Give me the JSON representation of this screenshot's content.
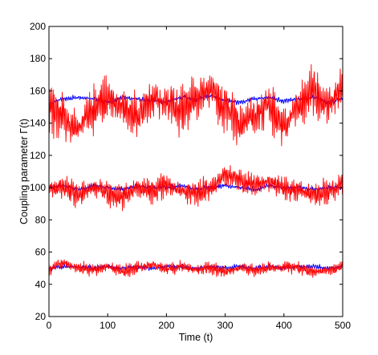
{
  "chart_data": {
    "type": "line",
    "title": "",
    "xlabel": "Time (t)",
    "ylabel": "Coupling parameter Γ(t)",
    "xlim": [
      0,
      500
    ],
    "ylim": [
      20,
      200
    ],
    "xticks": [
      0,
      100,
      200,
      300,
      400,
      500
    ],
    "yticks": [
      20,
      40,
      60,
      80,
      100,
      120,
      140,
      160,
      180,
      200
    ],
    "grid": false,
    "legend": "none",
    "series": [
      {
        "color": "#0000ff",
        "x": [
          0,
          25,
          50,
          75,
          100,
          125,
          150,
          175,
          200,
          225,
          250,
          275,
          300,
          325,
          350,
          375,
          400,
          425,
          450,
          475,
          500
        ],
        "y": [
          152,
          155,
          156,
          155,
          153,
          156,
          155,
          154,
          153,
          156,
          155,
          157,
          154,
          153,
          155,
          156,
          154,
          155,
          156,
          153,
          155
        ]
      },
      {
        "color": "#ff0000",
        "x": [
          0,
          25,
          50,
          75,
          100,
          125,
          150,
          175,
          200,
          225,
          250,
          275,
          300,
          325,
          350,
          375,
          400,
          425,
          450,
          475,
          500
        ],
        "y": [
          150,
          142,
          138,
          148,
          154,
          150,
          146,
          156,
          152,
          148,
          156,
          160,
          150,
          140,
          146,
          150,
          138,
          152,
          160,
          152,
          162
        ]
      },
      {
        "color": "#0000ff",
        "x": [
          0,
          25,
          50,
          75,
          100,
          125,
          150,
          175,
          200,
          225,
          250,
          275,
          300,
          325,
          350,
          375,
          400,
          425,
          450,
          475,
          500
        ],
        "y": [
          100,
          101,
          99,
          101,
          100,
          99,
          101,
          100,
          100,
          101,
          99,
          100,
          101,
          100,
          99,
          101,
          100,
          100,
          99,
          100,
          100
        ]
      },
      {
        "color": "#ff0000",
        "x": [
          0,
          25,
          50,
          75,
          100,
          125,
          150,
          175,
          200,
          225,
          250,
          275,
          300,
          325,
          350,
          375,
          400,
          425,
          450,
          475,
          500
        ],
        "y": [
          99,
          100,
          96,
          100,
          96,
          94,
          100,
          98,
          102,
          98,
          96,
          100,
          108,
          104,
          102,
          104,
          100,
          98,
          96,
          98,
          102
        ]
      },
      {
        "color": "#0000ff",
        "x": [
          0,
          25,
          50,
          75,
          100,
          125,
          150,
          175,
          200,
          225,
          250,
          275,
          300,
          325,
          350,
          375,
          400,
          425,
          450,
          475,
          500
        ],
        "y": [
          50,
          51,
          51,
          50,
          51,
          50,
          51,
          50,
          51,
          51,
          50,
          51,
          50,
          51,
          50,
          51,
          50,
          51,
          51,
          50,
          51
        ]
      },
      {
        "color": "#ff0000",
        "x": [
          0,
          25,
          50,
          75,
          100,
          125,
          150,
          175,
          200,
          225,
          250,
          275,
          300,
          325,
          350,
          375,
          400,
          425,
          450,
          475,
          500
        ],
        "y": [
          50,
          53,
          50,
          49,
          51,
          48,
          50,
          52,
          50,
          51,
          49,
          50,
          48,
          50,
          49,
          50,
          51,
          50,
          48,
          49,
          51
        ]
      }
    ]
  }
}
